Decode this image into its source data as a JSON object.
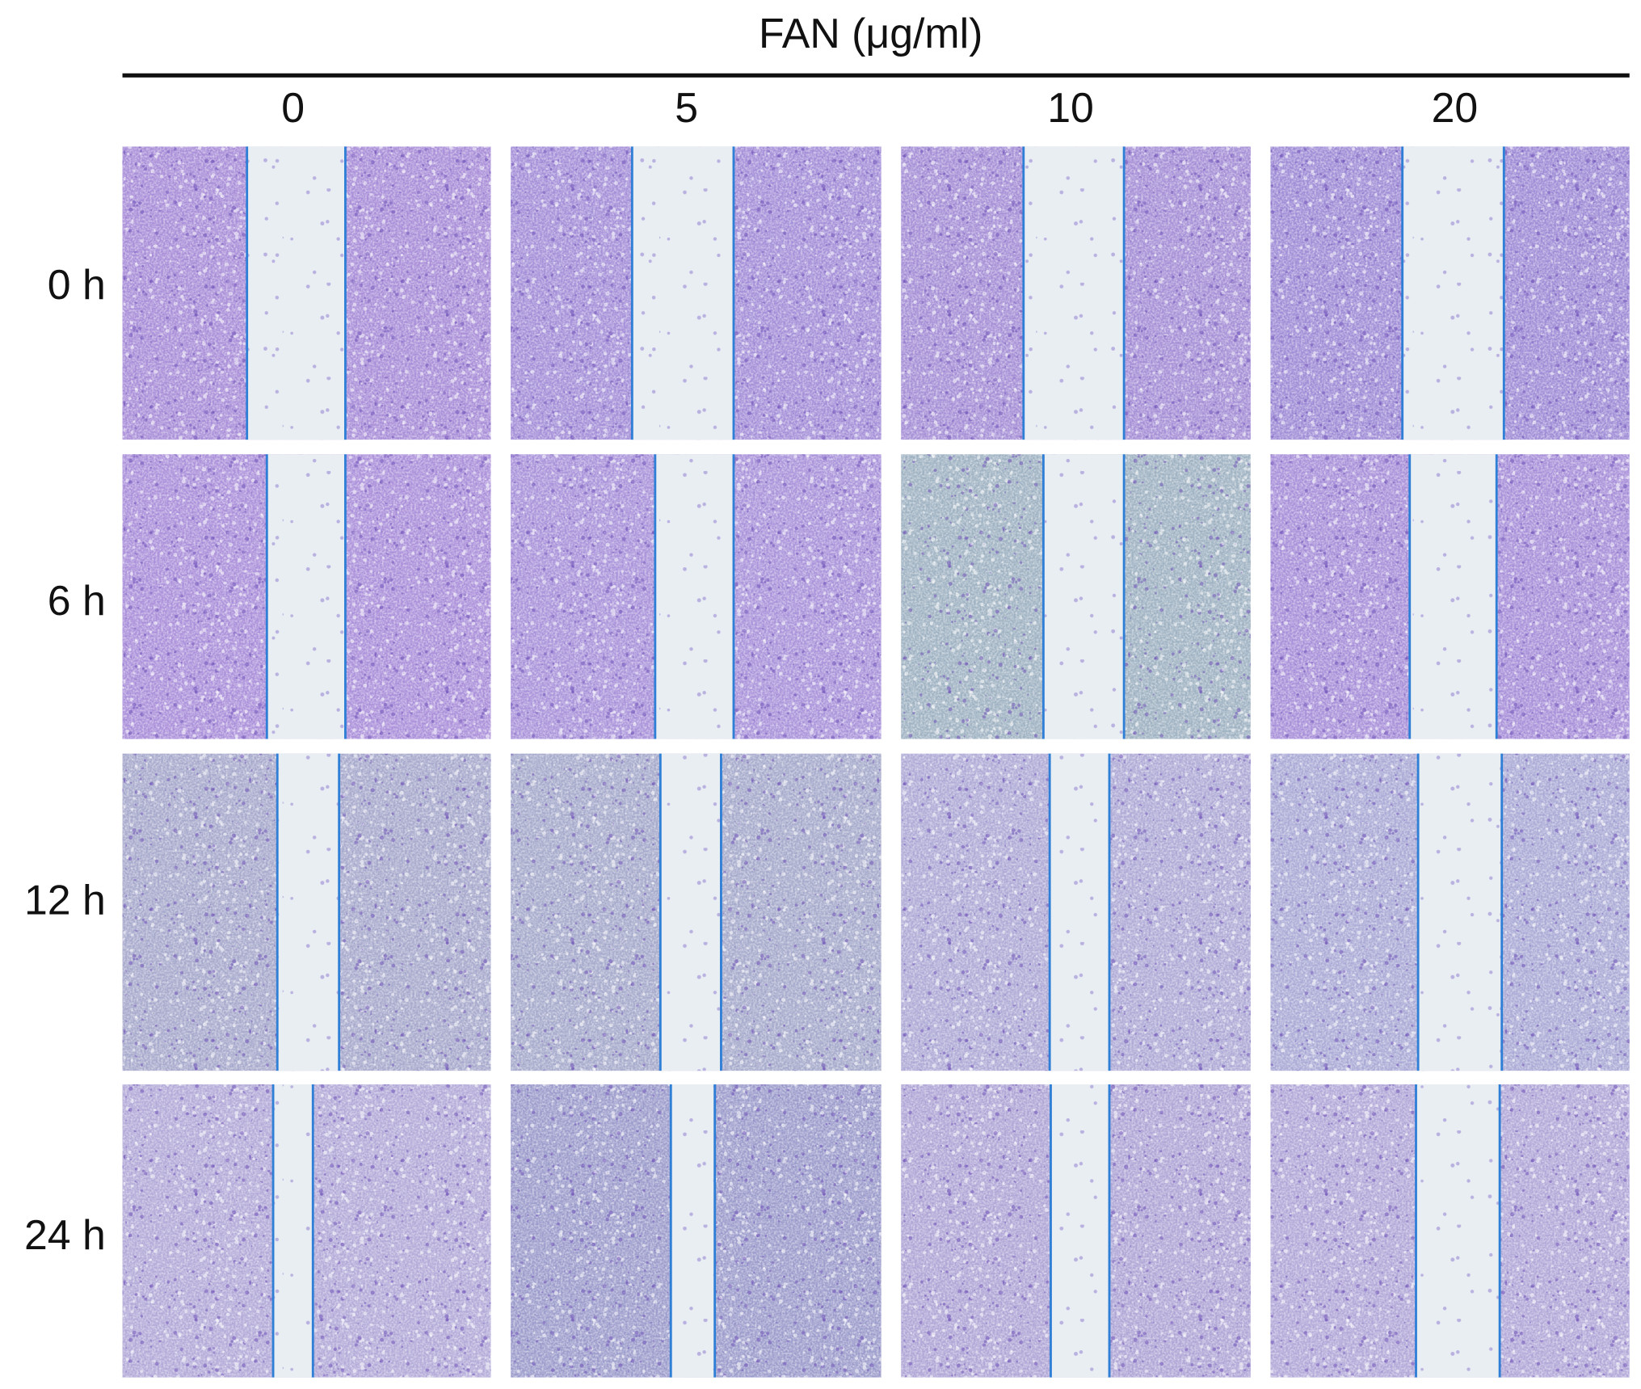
{
  "header": {
    "title": "FAN (μg/ml)"
  },
  "columns": [
    "0",
    "5",
    "10",
    "20"
  ],
  "rows": [
    "0 h",
    "6 h",
    "12 h",
    "24 h"
  ]
}
